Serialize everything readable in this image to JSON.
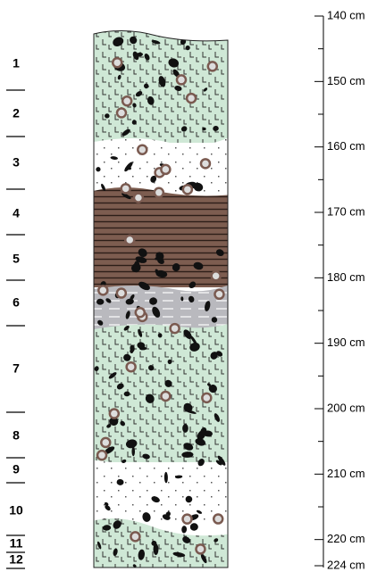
{
  "layers": [
    "1",
    "2",
    "3",
    "4",
    "5",
    "6",
    "7",
    "8",
    "9",
    "10",
    "11",
    "12"
  ],
  "scale": {
    "ticks": [
      {
        "value": 140,
        "label": "140 cm"
      },
      {
        "value": 150,
        "label": "150 cm"
      },
      {
        "value": 160,
        "label": "160 cm"
      },
      {
        "value": 170,
        "label": "170 cm"
      },
      {
        "value": 180,
        "label": "180 cm"
      },
      {
        "value": 190,
        "label": "190 cm"
      },
      {
        "value": 200,
        "label": "200 cm"
      },
      {
        "value": 210,
        "label": "210 cm"
      },
      {
        "value": 220,
        "label": "220 cm"
      },
      {
        "value": 224,
        "label": "224 cm"
      }
    ],
    "minor_ticks": [
      145,
      155,
      165,
      175,
      185,
      195,
      205,
      215
    ]
  }
}
